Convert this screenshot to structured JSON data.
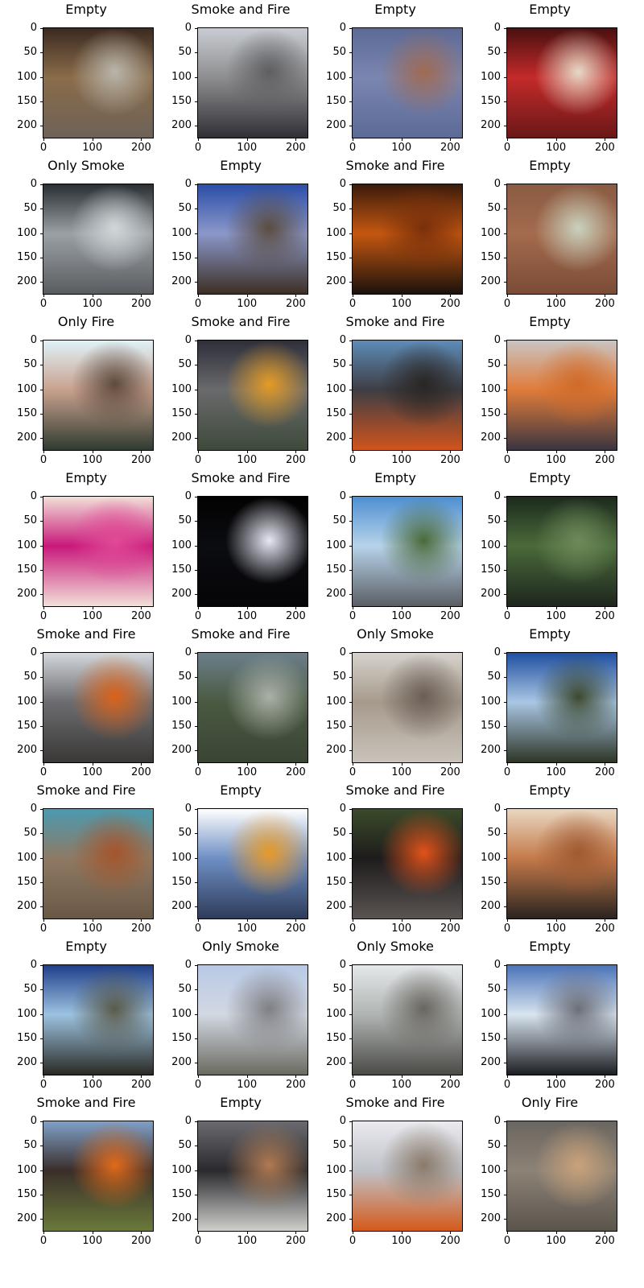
{
  "y_ticks": [
    "0",
    "50",
    "100",
    "150",
    "200"
  ],
  "x_ticks": [
    "0",
    "100",
    "200"
  ],
  "panels": [
    {
      "title": "Empty",
      "icon": "classroom-photo",
      "colors": [
        "#3c2a20",
        "#8a6c4a",
        "#b9b5ab",
        "#6e6258"
      ]
    },
    {
      "title": "Smoke and Fire",
      "icon": "street-smoke-photo",
      "colors": [
        "#c8ccd2",
        "#8e8e90",
        "#5f5f62",
        "#2f2f35"
      ]
    },
    {
      "title": "Empty",
      "icon": "coins-photo",
      "colors": [
        "#5c6a96",
        "#7b86b0",
        "#a06a52",
        "#5c6a96"
      ]
    },
    {
      "title": "Empty",
      "icon": "wine-glasses-photo",
      "colors": [
        "#4a1010",
        "#c42a2a",
        "#e7d9c7",
        "#6a1818"
      ]
    },
    {
      "title": "Only Smoke",
      "icon": "smoke-photo",
      "colors": [
        "#2a2f33",
        "#9aa0a5",
        "#d2d7da",
        "#5a5d60"
      ]
    },
    {
      "title": "Empty",
      "icon": "aerial-terrain-photo",
      "colors": [
        "#2b4ea8",
        "#8b97c9",
        "#5a4d40",
        "#3c2f24"
      ]
    },
    {
      "title": "Smoke and Fire",
      "icon": "fire-glow-photo",
      "colors": [
        "#3b1b0b",
        "#c45710",
        "#7a300b",
        "#1b120c"
      ]
    },
    {
      "title": "Empty",
      "icon": "brick-wall-photo",
      "colors": [
        "#8a5b42",
        "#a46b4e",
        "#c9d2be",
        "#7a4c36"
      ]
    },
    {
      "title": "Only Fire",
      "icon": "portrait-photo",
      "colors": [
        "#dff2f7",
        "#c9a18e",
        "#5e4a3e",
        "#2f3a30"
      ]
    },
    {
      "title": "Smoke and Fire",
      "icon": "building-fire-photo",
      "colors": [
        "#2d2f3a",
        "#6a6a6c",
        "#e39b25",
        "#3e4a3a"
      ]
    },
    {
      "title": "Smoke and Fire",
      "icon": "field-fire-photo",
      "colors": [
        "#5d8cb7",
        "#3e3e44",
        "#2a2624",
        "#d1541c"
      ]
    },
    {
      "title": "Empty",
      "icon": "life-jacket-photo",
      "colors": [
        "#c9c4c2",
        "#e07c3a",
        "#cf6b2a",
        "#3a3540"
      ]
    },
    {
      "title": "Empty",
      "icon": "dragon-fruit-photo",
      "colors": [
        "#f2e0d8",
        "#c8187a",
        "#e04a96",
        "#f2e0d8"
      ]
    },
    {
      "title": "Smoke and Fire",
      "icon": "night-fire-photo",
      "colors": [
        "#020202",
        "#0b0c10",
        "#e8e8f5",
        "#050507"
      ]
    },
    {
      "title": "Empty",
      "icon": "sky-clouds-photo",
      "colors": [
        "#4e8fd1",
        "#b7d3ea",
        "#4a6a3a",
        "#5a5e63"
      ]
    },
    {
      "title": "Empty",
      "icon": "trees-photo",
      "colors": [
        "#1c2a1c",
        "#4a6a3a",
        "#6e8a5a",
        "#1e261e"
      ]
    },
    {
      "title": "Smoke and Fire",
      "icon": "forest-fire-photo",
      "colors": [
        "#d3d7db",
        "#6c6c70",
        "#d9621a",
        "#3a3836"
      ]
    },
    {
      "title": "Smoke and Fire",
      "icon": "car-fire-photo",
      "colors": [
        "#6c7f8a",
        "#4a5a42",
        "#aab0a8",
        "#3a4434"
      ]
    },
    {
      "title": "Only Smoke",
      "icon": "firefighters-photo",
      "colors": [
        "#d6d2cc",
        "#a69a8c",
        "#6a5e56",
        "#c9c3bb"
      ]
    },
    {
      "title": "Empty",
      "icon": "horizon-photo",
      "colors": [
        "#1f4fa0",
        "#a9c6e4",
        "#3d4a30",
        "#2e3526"
      ]
    },
    {
      "title": "Smoke and Fire",
      "icon": "wildfire-photo",
      "colors": [
        "#4c9ab0",
        "#8e7a64",
        "#a4552c",
        "#6a5846"
      ]
    },
    {
      "title": "Empty",
      "icon": "helmet-grid-photo",
      "colors": [
        "#ffffff",
        "#6e8fc4",
        "#e69a2a",
        "#2e3c5a"
      ]
    },
    {
      "title": "Smoke and Fire",
      "icon": "debris-fire-photo",
      "colors": [
        "#3a4a2a",
        "#1e1c1c",
        "#e2521a",
        "#5a5452"
      ]
    },
    {
      "title": "Empty",
      "icon": "kitchen-photo",
      "colors": [
        "#e9d7c2",
        "#c47a4a",
        "#a05a32",
        "#2a2420"
      ]
    },
    {
      "title": "Empty",
      "icon": "mountain-view-photo",
      "colors": [
        "#1f3f8a",
        "#9cc2e0",
        "#5a5a4a",
        "#2a2a24"
      ]
    },
    {
      "title": "Only Smoke",
      "icon": "city-smoke-photo",
      "colors": [
        "#b8c9e6",
        "#d2d8e2",
        "#7f7f84",
        "#6a6a60"
      ]
    },
    {
      "title": "Only Smoke",
      "icon": "village-smoke-photo",
      "colors": [
        "#e4e8ea",
        "#b0b4b2",
        "#6a6660",
        "#4a4a46"
      ]
    },
    {
      "title": "Empty",
      "icon": "sun-horizon-photo",
      "colors": [
        "#4b73b8",
        "#d8e4f0",
        "#6c6f78",
        "#1c1e22"
      ]
    },
    {
      "title": "Smoke and Fire",
      "icon": "house-fire-photo",
      "colors": [
        "#7fa0c8",
        "#3a2e2a",
        "#e06a1a",
        "#6a7a3a"
      ]
    },
    {
      "title": "Empty",
      "icon": "lecture-hall-photo",
      "colors": [
        "#6a6a70",
        "#2a2a2e",
        "#b07a52",
        "#cfd0cc"
      ]
    },
    {
      "title": "Smoke and Fire",
      "icon": "road-fire-photo",
      "colors": [
        "#eaeaf0",
        "#bfc2c8",
        "#8a7a6a",
        "#d45a1a"
      ]
    },
    {
      "title": "Only Fire",
      "icon": "blurred-photo",
      "colors": [
        "#6a6660",
        "#8c8276",
        "#c9a27a",
        "#5a544c"
      ]
    }
  ]
}
